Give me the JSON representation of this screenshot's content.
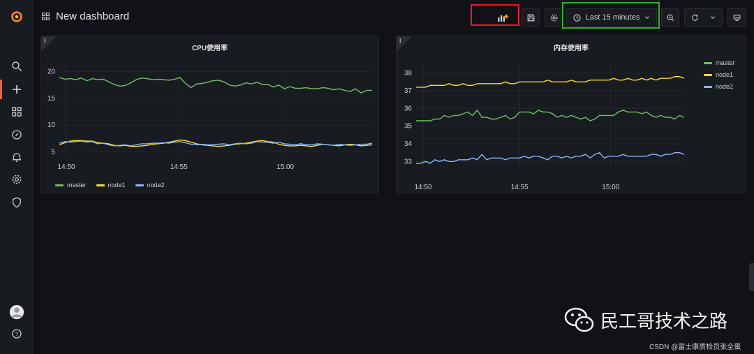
{
  "dashboard": {
    "title": "New dashboard"
  },
  "toolbar": {
    "time_range_label": "Last 15 minutes"
  },
  "colors": {
    "master": "#73bf69",
    "node1": "#fade2a",
    "node2": "#8ab8ff",
    "accent": "#f55f3e"
  },
  "panels": [
    {
      "title": "CPU使用率",
      "legend": [
        {
          "name": "master"
        },
        {
          "name": "node1"
        },
        {
          "name": "node2"
        }
      ]
    },
    {
      "title": "内存使用率",
      "legend": [
        {
          "name": "master"
        },
        {
          "name": "node1"
        },
        {
          "name": "node2"
        }
      ]
    }
  ],
  "chart_data": [
    {
      "type": "line",
      "title": "CPU使用率",
      "x_ticks": [
        "14:50",
        "14:55",
        "15:00"
      ],
      "y_ticks": [
        "20",
        "15",
        "10",
        "5"
      ],
      "ylim": [
        4,
        21
      ],
      "series": [
        {
          "name": "master",
          "values": [
            18.9,
            18.6,
            18.7,
            18.5,
            18.8,
            18.3,
            18.7,
            18.5,
            18.6,
            18.1,
            17.6,
            17.3,
            17.4,
            17.9,
            18.5,
            18.8,
            18.7,
            18.5,
            18.6,
            18.5,
            18.4,
            18.6,
            18.9,
            17.8,
            17.0,
            17.7,
            17.8,
            18.0,
            18.3,
            18.4,
            18.1,
            17.5,
            17.3,
            17.5,
            17.9,
            17.7,
            18.0,
            17.6,
            17.6,
            17.1,
            17.5,
            16.8,
            17.2,
            16.9,
            16.9,
            17.0,
            16.8,
            16.8,
            17.0,
            16.9,
            16.6,
            16.8,
            16.5,
            16.3,
            16.8,
            16.0,
            16.5,
            16.5
          ]
        },
        {
          "name": "node1",
          "values": [
            6.3,
            6.7,
            7.0,
            7.1,
            7.1,
            7.0,
            7.0,
            6.7,
            6.6,
            6.5,
            6.2,
            6.1,
            6.2,
            6.0,
            6.0,
            6.1,
            6.2,
            6.4,
            6.5,
            6.6,
            6.8,
            7.0,
            7.2,
            7.1,
            6.8,
            6.5,
            6.3,
            6.2,
            6.1,
            6.0,
            6.1,
            6.2,
            6.4,
            6.5,
            6.6,
            6.8,
            7.0,
            7.1,
            6.9,
            6.8,
            6.4,
            6.2,
            6.1,
            6.1,
            6.2,
            6.1,
            6.0,
            6.2,
            6.4,
            6.3,
            6.2,
            6.1,
            6.3,
            6.4,
            6.3,
            6.1,
            6.2,
            6.3
          ]
        },
        {
          "name": "node2",
          "values": [
            6.6,
            6.9,
            6.8,
            6.9,
            7.0,
            6.8,
            6.9,
            6.5,
            6.6,
            6.3,
            6.1,
            6.2,
            6.3,
            6.1,
            6.3,
            6.5,
            6.5,
            6.6,
            6.6,
            6.7,
            6.6,
            6.8,
            6.9,
            6.7,
            6.4,
            6.3,
            6.4,
            6.3,
            6.3,
            6.4,
            6.5,
            6.3,
            6.5,
            6.6,
            6.5,
            6.6,
            6.9,
            6.8,
            6.8,
            6.6,
            6.8,
            6.5,
            6.4,
            6.3,
            6.5,
            6.3,
            6.3,
            6.5,
            6.4,
            6.3,
            6.2,
            6.4,
            6.3,
            6.2,
            6.3,
            6.4,
            6.4,
            6.6
          ]
        }
      ]
    },
    {
      "type": "line",
      "title": "内存使用率",
      "x_ticks": [
        "14:50",
        "14:55",
        "15:00"
      ],
      "y_ticks": [
        "38",
        "37",
        "36",
        "35",
        "34",
        "33"
      ],
      "ylim": [
        32.5,
        38.3
      ],
      "series": [
        {
          "name": "master",
          "values": [
            35.3,
            35.3,
            35.3,
            35.3,
            35.4,
            35.4,
            35.6,
            35.5,
            35.6,
            35.6,
            35.7,
            35.8,
            35.6,
            35.9,
            35.5,
            35.5,
            35.4,
            35.4,
            35.5,
            35.6,
            35.4,
            35.5,
            35.8,
            35.8,
            35.8,
            35.7,
            35.9,
            35.8,
            35.8,
            35.7,
            35.5,
            35.6,
            35.5,
            35.6,
            35.5,
            35.4,
            35.5,
            35.3,
            35.4,
            35.6,
            35.6,
            35.6,
            35.6,
            35.8,
            35.9,
            35.8,
            35.8,
            35.8,
            35.7,
            35.8,
            35.6,
            35.5,
            35.6,
            35.5,
            35.5,
            35.4,
            35.6,
            35.5
          ]
        },
        {
          "name": "node1",
          "values": [
            37.2,
            37.2,
            37.2,
            37.3,
            37.3,
            37.3,
            37.3,
            37.4,
            37.3,
            37.3,
            37.4,
            37.3,
            37.3,
            37.4,
            37.4,
            37.4,
            37.4,
            37.4,
            37.4,
            37.5,
            37.4,
            37.4,
            37.5,
            37.5,
            37.5,
            37.5,
            37.5,
            37.5,
            37.6,
            37.5,
            37.5,
            37.5,
            37.5,
            37.6,
            37.5,
            37.5,
            37.5,
            37.6,
            37.6,
            37.6,
            37.6,
            37.6,
            37.7,
            37.6,
            37.6,
            37.7,
            37.6,
            37.6,
            37.7,
            37.6,
            37.7,
            37.6,
            37.7,
            37.7,
            37.7,
            37.8,
            37.8,
            37.7
          ]
        },
        {
          "name": "node2",
          "values": [
            32.9,
            32.9,
            33.0,
            32.9,
            33.1,
            33.0,
            33.1,
            33.0,
            33.0,
            33.1,
            33.1,
            33.1,
            33.2,
            33.1,
            33.4,
            33.1,
            33.2,
            33.2,
            33.2,
            33.1,
            33.2,
            33.2,
            33.2,
            33.3,
            33.2,
            33.3,
            33.3,
            33.2,
            33.1,
            33.3,
            33.3,
            33.2,
            33.3,
            33.2,
            33.3,
            33.3,
            33.4,
            33.2,
            33.4,
            33.5,
            33.2,
            33.3,
            33.3,
            33.3,
            33.4,
            33.3,
            33.3,
            33.3,
            33.3,
            33.3,
            33.4,
            33.4,
            33.3,
            33.4,
            33.4,
            33.5,
            33.5,
            33.4
          ]
        }
      ]
    }
  ],
  "sidebar": {
    "items": [
      {
        "icon": "grafana-logo-icon"
      },
      {
        "icon": "search-icon"
      },
      {
        "icon": "plus-icon"
      },
      {
        "icon": "dashboards-icon"
      },
      {
        "icon": "explore-icon"
      },
      {
        "icon": "bell-icon"
      },
      {
        "icon": "gear-icon"
      },
      {
        "icon": "shield-icon"
      },
      {
        "icon": "avatar"
      },
      {
        "icon": "help-icon"
      }
    ]
  },
  "watermark": {
    "text": "民工哥技术之路"
  },
  "credit": {
    "text": "CSDN @富士康质检员张全蛋"
  }
}
